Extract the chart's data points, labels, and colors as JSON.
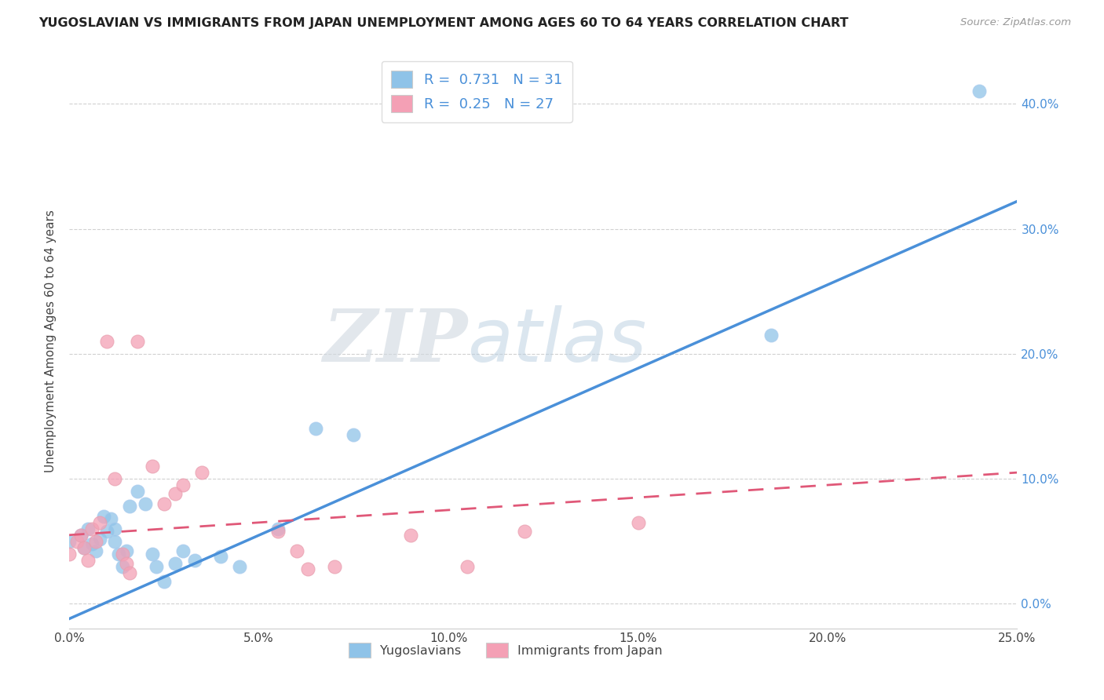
{
  "title": "YUGOSLAVIAN VS IMMIGRANTS FROM JAPAN UNEMPLOYMENT AMONG AGES 60 TO 64 YEARS CORRELATION CHART",
  "source": "Source: ZipAtlas.com",
  "ylabel": "Unemployment Among Ages 60 to 64 years",
  "xlim": [
    0.0,
    0.25
  ],
  "ylim": [
    -0.02,
    0.44
  ],
  "xticks": [
    0.0,
    0.05,
    0.1,
    0.15,
    0.2,
    0.25
  ],
  "yticks_right": [
    0.0,
    0.1,
    0.2,
    0.3,
    0.4
  ],
  "ytick_labels_right": [
    "0.0%",
    "10.0%",
    "20.0%",
    "30.0%",
    "40.0%"
  ],
  "xtick_labels": [
    "0.0%",
    "5.0%",
    "10.0%",
    "15.0%",
    "20.0%",
    "25.0%"
  ],
  "blue_color": "#8fc3e8",
  "pink_color": "#f4a0b5",
  "blue_line_color": "#4a90d9",
  "pink_line_color": "#e05878",
  "R_blue": 0.731,
  "N_blue": 31,
  "R_pink": 0.25,
  "N_pink": 27,
  "legend_label_blue": "Yugoslavians",
  "legend_label_pink": "Immigrants from Japan",
  "watermark_zip": "ZIP",
  "watermark_atlas": "atlas",
  "blue_scatter": [
    [
      0.0,
      0.05
    ],
    [
      0.003,
      0.055
    ],
    [
      0.004,
      0.045
    ],
    [
      0.005,
      0.06
    ],
    [
      0.006,
      0.048
    ],
    [
      0.007,
      0.042
    ],
    [
      0.008,
      0.052
    ],
    [
      0.009,
      0.07
    ],
    [
      0.01,
      0.058
    ],
    [
      0.011,
      0.068
    ],
    [
      0.012,
      0.06
    ],
    [
      0.012,
      0.05
    ],
    [
      0.013,
      0.04
    ],
    [
      0.014,
      0.03
    ],
    [
      0.015,
      0.042
    ],
    [
      0.016,
      0.078
    ],
    [
      0.018,
      0.09
    ],
    [
      0.02,
      0.08
    ],
    [
      0.022,
      0.04
    ],
    [
      0.023,
      0.03
    ],
    [
      0.025,
      0.018
    ],
    [
      0.028,
      0.032
    ],
    [
      0.03,
      0.042
    ],
    [
      0.033,
      0.035
    ],
    [
      0.04,
      0.038
    ],
    [
      0.045,
      0.03
    ],
    [
      0.055,
      0.06
    ],
    [
      0.065,
      0.14
    ],
    [
      0.075,
      0.135
    ],
    [
      0.185,
      0.215
    ],
    [
      0.24,
      0.41
    ]
  ],
  "pink_scatter": [
    [
      0.0,
      0.04
    ],
    [
      0.002,
      0.05
    ],
    [
      0.003,
      0.055
    ],
    [
      0.004,
      0.045
    ],
    [
      0.005,
      0.035
    ],
    [
      0.006,
      0.06
    ],
    [
      0.007,
      0.05
    ],
    [
      0.008,
      0.065
    ],
    [
      0.01,
      0.21
    ],
    [
      0.012,
      0.1
    ],
    [
      0.014,
      0.04
    ],
    [
      0.015,
      0.032
    ],
    [
      0.016,
      0.025
    ],
    [
      0.018,
      0.21
    ],
    [
      0.022,
      0.11
    ],
    [
      0.025,
      0.08
    ],
    [
      0.028,
      0.088
    ],
    [
      0.03,
      0.095
    ],
    [
      0.035,
      0.105
    ],
    [
      0.055,
      0.058
    ],
    [
      0.06,
      0.042
    ],
    [
      0.063,
      0.028
    ],
    [
      0.07,
      0.03
    ],
    [
      0.09,
      0.055
    ],
    [
      0.105,
      0.03
    ],
    [
      0.12,
      0.058
    ],
    [
      0.15,
      0.065
    ]
  ],
  "blue_line": [
    [
      0.0,
      -0.012
    ],
    [
      0.25,
      0.322
    ]
  ],
  "pink_line": [
    [
      0.0,
      0.055
    ],
    [
      0.25,
      0.105
    ]
  ],
  "background_color": "#ffffff",
  "grid_color": "#cccccc"
}
